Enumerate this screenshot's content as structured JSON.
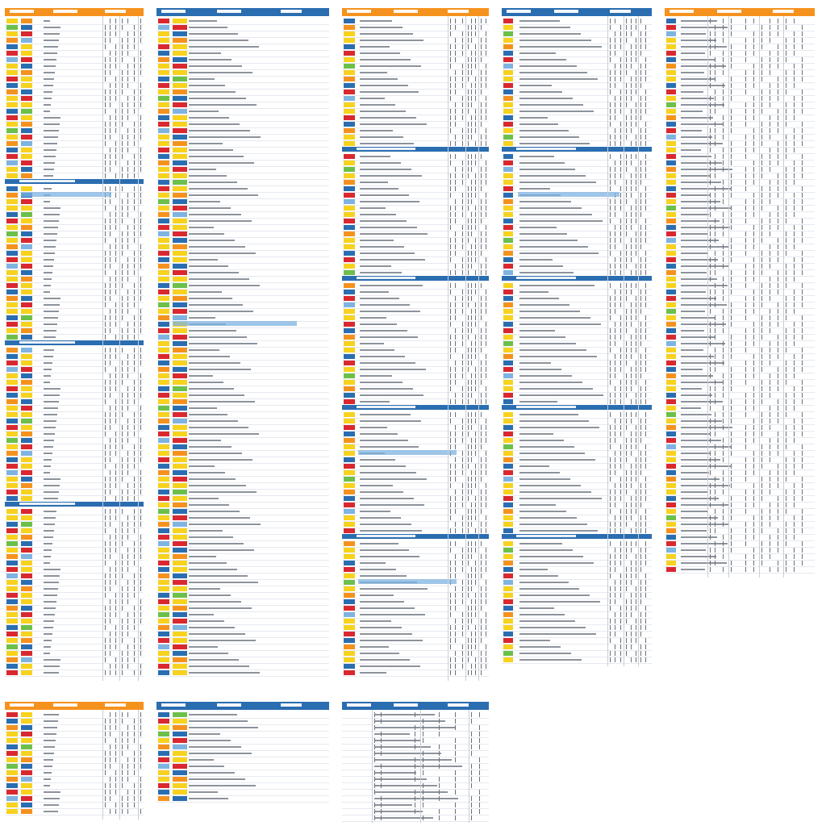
{
  "colors": {
    "orange": "#f5921e",
    "blue": "#2a6db0",
    "light_blue": "#7fb3e0",
    "yellow": "#f7d21e",
    "red": "#d9282f",
    "green": "#6cc04a",
    "teal": "#4db8c8",
    "gray_text": "#8d939c",
    "rule": "#e6e9ef"
  },
  "swatch_palette": [
    "yellow",
    "yellow",
    "blue",
    "red",
    "yellow",
    "orange",
    "blue",
    "green",
    "yellow",
    "red",
    "light_blue",
    "yellow",
    "blue",
    "orange",
    "yellow",
    "red"
  ],
  "panels": [
    {
      "id": "p1",
      "header_color": "orange",
      "sections": [
        "blue",
        "blue",
        "blue"
      ],
      "highlight_rows": [
        1
      ]
    },
    {
      "id": "p2",
      "header_color": "blue",
      "sections": [],
      "highlight_rows": [
        2
      ]
    },
    {
      "id": "p3",
      "header_color": "orange",
      "sections": [
        "blue",
        "blue",
        "blue",
        "blue"
      ],
      "highlight_rows": [
        3,
        4
      ]
    },
    {
      "id": "p4",
      "header_color": "blue",
      "sections": [
        "blue",
        "blue",
        "blue",
        "blue"
      ],
      "highlight_rows": [
        1
      ]
    },
    {
      "id": "p5",
      "header_color": "orange",
      "sections": [],
      "highlight_rows": []
    },
    {
      "id": "p6",
      "header_color": "orange",
      "sections": [],
      "highlight_rows": [
        1
      ]
    },
    {
      "id": "p7",
      "header_color": "blue",
      "sections": [],
      "highlight_rows": []
    },
    {
      "id": "p8",
      "header_color": "blue",
      "sections": [],
      "highlight_rows": []
    }
  ]
}
